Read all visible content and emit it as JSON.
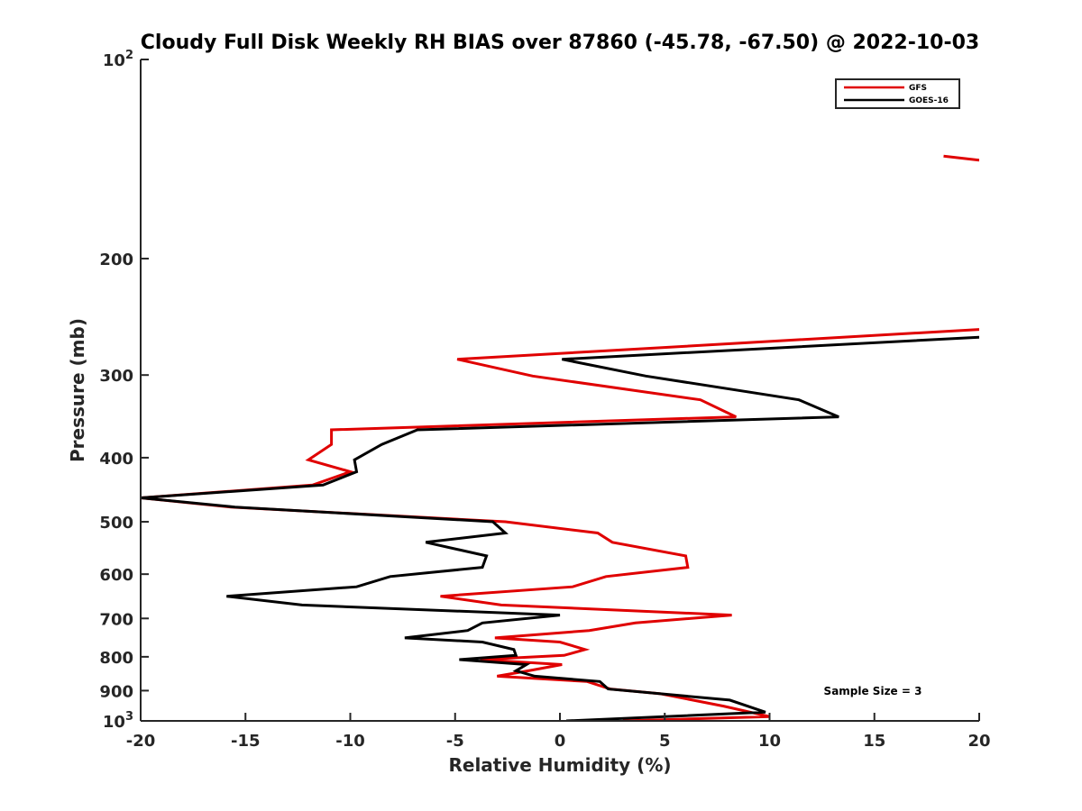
{
  "chart_data": {
    "type": "line",
    "title": "Cloudy Full Disk Weekly RH BIAS over 87860 (-45.78, -67.50) @ 2022-10-03",
    "xlabel": "Relative Humidity (%)",
    "ylabel": "Pressure (mb)",
    "xlim": [
      -20,
      20
    ],
    "ylim": [
      100,
      1000
    ],
    "y_scale": "log",
    "y_reversed": true,
    "grid": false,
    "legend_position": "top-right",
    "x_ticks": [
      {
        "value": -20,
        "label": "-20"
      },
      {
        "value": -15,
        "label": "-15"
      },
      {
        "value": -10,
        "label": "-10"
      },
      {
        "value": -5,
        "label": "-5"
      },
      {
        "value": 0,
        "label": "0"
      },
      {
        "value": 5,
        "label": "5"
      },
      {
        "value": 10,
        "label": "10"
      },
      {
        "value": 15,
        "label": "15"
      },
      {
        "value": 20,
        "label": "20"
      }
    ],
    "y_ticks": [
      {
        "value": 100,
        "base": "10",
        "exp": "2"
      },
      {
        "value": 200,
        "label": "200"
      },
      {
        "value": 300,
        "label": "300"
      },
      {
        "value": 400,
        "label": "400"
      },
      {
        "value": 500,
        "label": "500"
      },
      {
        "value": 600,
        "label": "600"
      },
      {
        "value": 700,
        "label": "700"
      },
      {
        "value": 800,
        "label": "800"
      },
      {
        "value": 900,
        "label": "900"
      },
      {
        "value": 1000,
        "base": "10",
        "exp": "3"
      }
    ],
    "series": [
      {
        "name": "GFS",
        "color": "#e00000",
        "segments": [
          [
            [
              18.3,
              140
            ],
            [
              20,
              142
            ]
          ],
          [
            [
              20,
              256
            ],
            [
              -4.9,
              284
            ],
            [
              -1.3,
              301
            ],
            [
              6.7,
              327
            ],
            [
              8.4,
              347
            ],
            [
              -10.9,
              363
            ],
            [
              -10.9,
              382
            ],
            [
              -12.0,
              403
            ],
            [
              -10.0,
              420
            ],
            [
              -11.8,
              440
            ],
            [
              -20.0,
              460
            ],
            [
              -15.7,
              475
            ],
            [
              -2.6,
              500
            ],
            [
              1.8,
              520
            ],
            [
              2.5,
              537
            ],
            [
              6.0,
              563
            ],
            [
              6.1,
              586
            ],
            [
              2.2,
              605
            ],
            [
              0.6,
              627
            ],
            [
              -5.7,
              648
            ],
            [
              -2.8,
              668
            ],
            [
              8.2,
              692
            ],
            [
              3.6,
              711
            ],
            [
              1.4,
              730
            ],
            [
              -3.1,
              749
            ],
            [
              0.0,
              760
            ],
            [
              1.2,
              780
            ],
            [
              0.2,
              796
            ],
            [
              -3.8,
              808
            ],
            [
              0.1,
              822
            ],
            [
              -1.5,
              840
            ],
            [
              -3.0,
              856
            ],
            [
              1.3,
              872
            ],
            [
              2.4,
              895
            ],
            [
              4.8,
              910
            ],
            [
              7.8,
              950
            ],
            [
              10.0,
              985
            ],
            [
              3.0,
              1000
            ]
          ]
        ]
      },
      {
        "name": "GOES-16",
        "color": "#000000",
        "segments": [
          [
            [
              20,
              263
            ],
            [
              0.1,
              284
            ],
            [
              4.1,
              301
            ],
            [
              11.4,
              327
            ],
            [
              13.3,
              347
            ],
            [
              -6.8,
              363
            ],
            [
              -8.5,
              382
            ],
            [
              -9.8,
              403
            ],
            [
              -9.7,
              420
            ],
            [
              -11.3,
              440
            ],
            [
              -20.0,
              460
            ],
            [
              -15.5,
              475
            ],
            [
              -3.2,
              500
            ],
            [
              -2.6,
              520
            ],
            [
              -6.4,
              537
            ],
            [
              -3.5,
              563
            ],
            [
              -3.7,
              586
            ],
            [
              -8.1,
              605
            ],
            [
              -9.7,
              627
            ],
            [
              -15.9,
              648
            ],
            [
              -12.3,
              668
            ],
            [
              0.0,
              692
            ],
            [
              -3.7,
              711
            ],
            [
              -4.4,
              730
            ],
            [
              -7.4,
              749
            ],
            [
              -3.7,
              760
            ],
            [
              -2.2,
              780
            ],
            [
              -2.1,
              796
            ],
            [
              -4.8,
              808
            ],
            [
              -1.6,
              822
            ],
            [
              -2.1,
              840
            ],
            [
              -1.2,
              856
            ],
            [
              1.9,
              872
            ],
            [
              2.3,
              895
            ],
            [
              8.1,
              930
            ],
            [
              9.8,
              970
            ],
            [
              0.3,
              1000
            ]
          ]
        ]
      }
    ],
    "annotations": [
      {
        "text": "Sample Size = 3"
      }
    ]
  }
}
